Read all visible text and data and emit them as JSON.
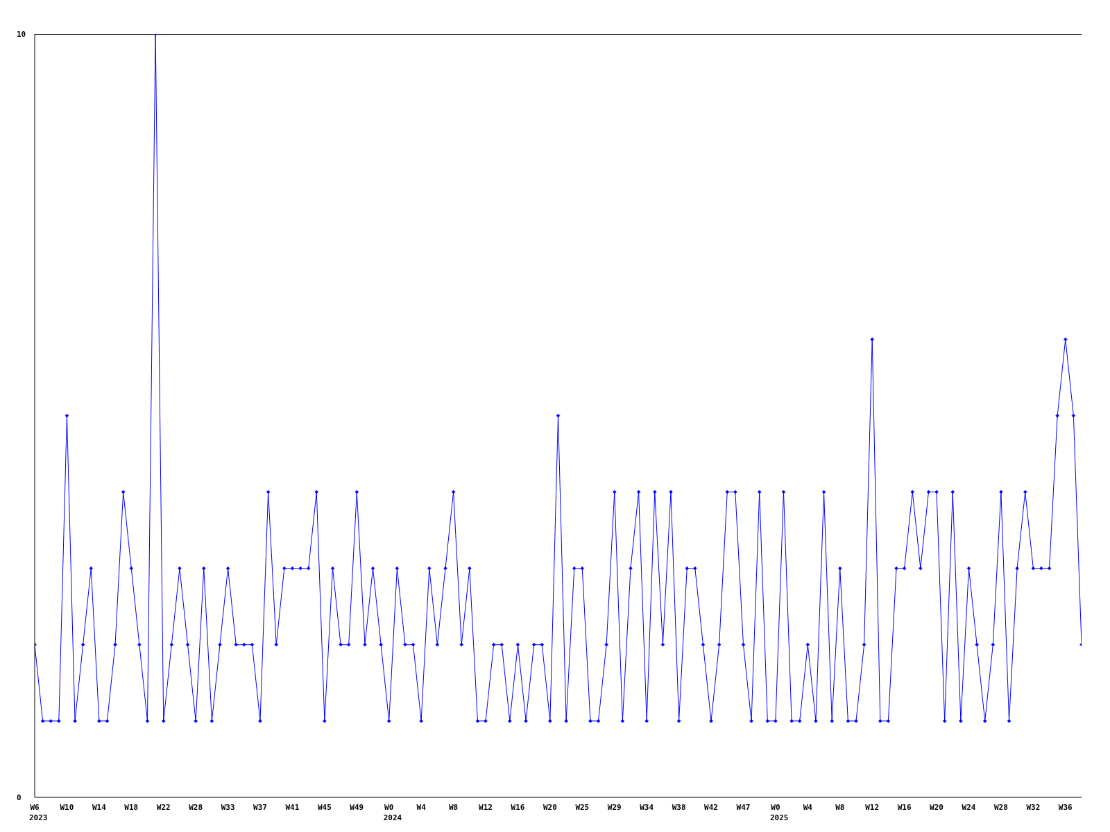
{
  "chart_data": {
    "type": "line",
    "categories": [
      "W6\n2023",
      null,
      null,
      null,
      "W10",
      null,
      null,
      null,
      "W14",
      null,
      null,
      null,
      "W18",
      null,
      null,
      null,
      "W22",
      null,
      null,
      null,
      "W28",
      null,
      null,
      null,
      "W33",
      null,
      null,
      null,
      "W37",
      null,
      null,
      null,
      "W41",
      null,
      null,
      null,
      "W45",
      null,
      null,
      null,
      "W49",
      null,
      null,
      null,
      "W0\n2024",
      null,
      null,
      null,
      "W4",
      null,
      null,
      null,
      "W8",
      null,
      null,
      null,
      "W12",
      null,
      null,
      null,
      "W16",
      null,
      null,
      null,
      "W20",
      null,
      null,
      null,
      "W25",
      null,
      null,
      null,
      "W29",
      null,
      null,
      null,
      "W34",
      null,
      null,
      null,
      "W38",
      null,
      null,
      null,
      "W42",
      null,
      null,
      null,
      "W47",
      null,
      null,
      null,
      "W0\n2025",
      null,
      null,
      null,
      "W4",
      null,
      null,
      null,
      "W8",
      null,
      null,
      null,
      "W12",
      null,
      null,
      null,
      "W16",
      null,
      null,
      null,
      "W20",
      null,
      null,
      null,
      "W24",
      null,
      null,
      null,
      "W28",
      null,
      null,
      null,
      "W32",
      null,
      null,
      null,
      "W36",
      null,
      null
    ],
    "series": [
      {
        "color": "#0000ff",
        "values": [
          2,
          1,
          1,
          1,
          5,
          1,
          2,
          3,
          1,
          1,
          2,
          4,
          3,
          2,
          1,
          10,
          1,
          2,
          3,
          2,
          1,
          3,
          1,
          2,
          3,
          2,
          2,
          2,
          1,
          4,
          2,
          3,
          3,
          3,
          3,
          4,
          1,
          3,
          2,
          2,
          4,
          2,
          3,
          2,
          1,
          3,
          2,
          2,
          1,
          3,
          2,
          3,
          4,
          2,
          3,
          1,
          1,
          2,
          2,
          1,
          2,
          1,
          2,
          2,
          1,
          5,
          1,
          3,
          3,
          1,
          1,
          2,
          4,
          1,
          3,
          4,
          1,
          4,
          2,
          4,
          1,
          3,
          3,
          2,
          1,
          2,
          4,
          4,
          2,
          1,
          4,
          1,
          1,
          4,
          1,
          1,
          2,
          1,
          4,
          1,
          3,
          1,
          1,
          2,
          6,
          1,
          1,
          3,
          3,
          4,
          3,
          4,
          4,
          1,
          4,
          1,
          3,
          2,
          1,
          2,
          4,
          1,
          3,
          4,
          3,
          3,
          3,
          5,
          6,
          5,
          2
        ]
      }
    ],
    "ylim": [
      0,
      10
    ],
    "yticks": [
      0,
      10
    ],
    "grid": false,
    "marker": "diamond",
    "line_style": "solid"
  }
}
